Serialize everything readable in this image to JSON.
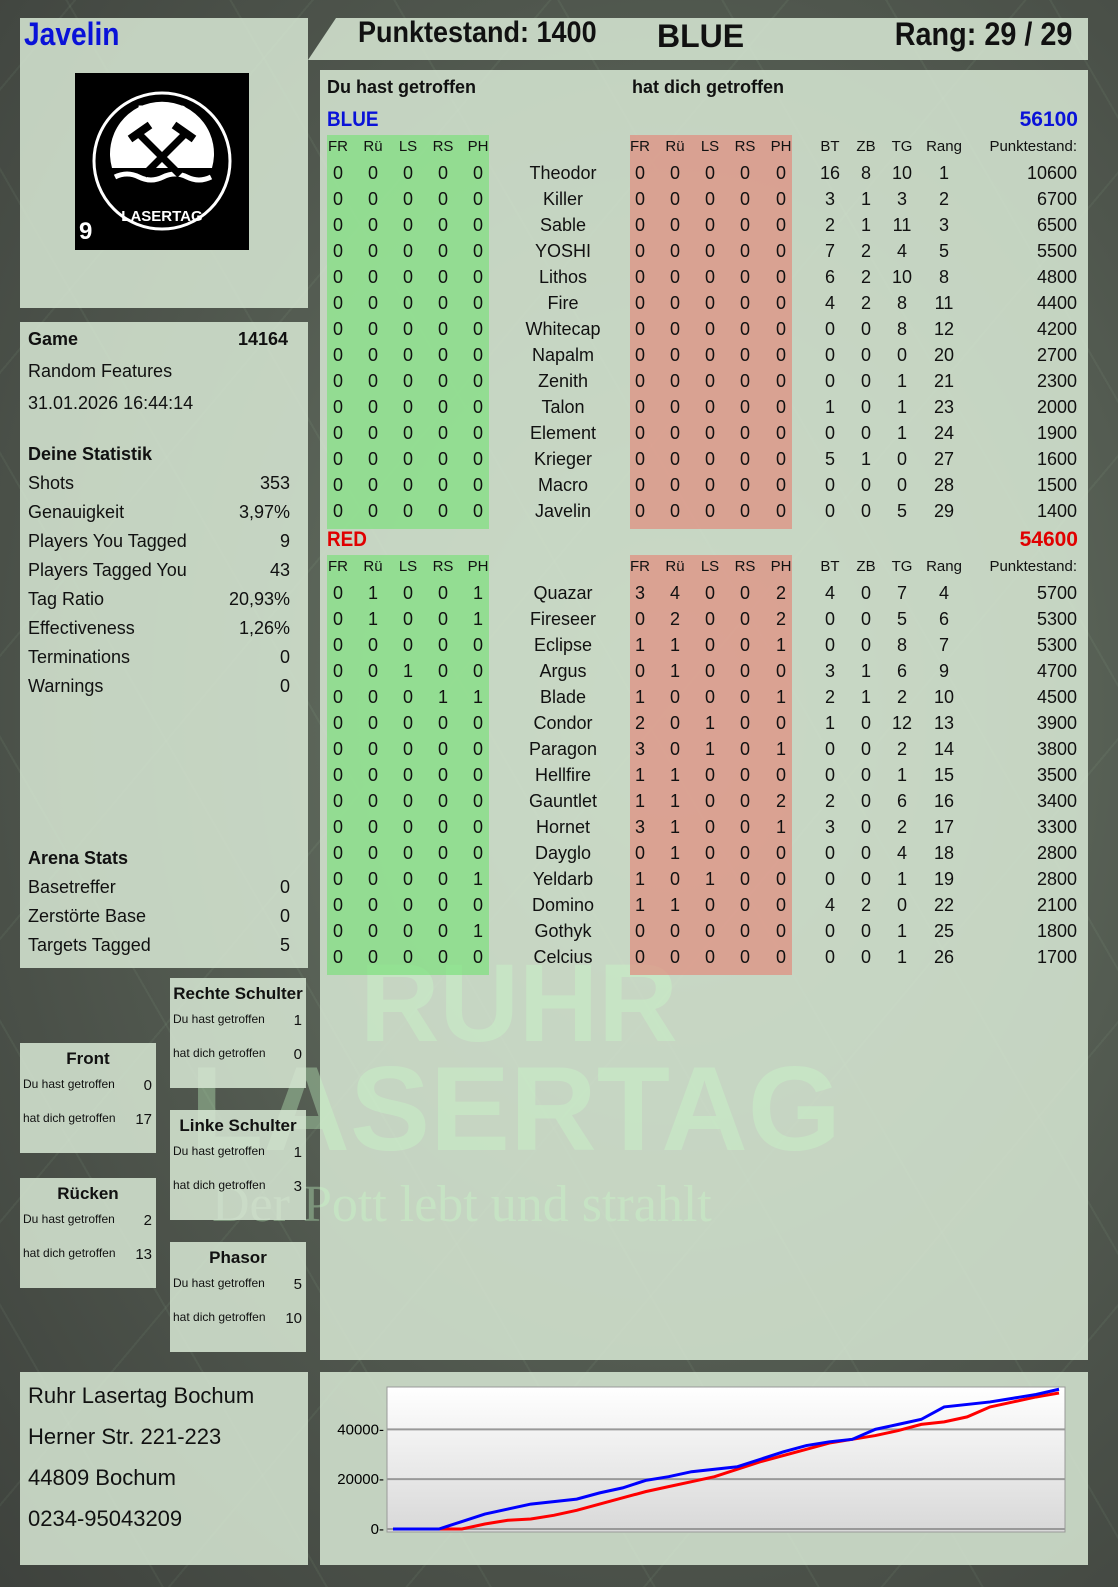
{
  "player": {
    "name": "Javelin",
    "score_label": "Punktestand: 1400",
    "team": "BLUE",
    "rank_label": "Rang: 29 / 29"
  },
  "logo": {
    "top": "RUHR",
    "bottom": "LASERTAG",
    "badge": "9"
  },
  "watermark": {
    "line1": "RUHR",
    "line2": "LASERTAG",
    "line3": "Der Pott lebt und strahlt"
  },
  "columns": {
    "you_hit": "Du hast getroffen",
    "hit_you": "hat dich getroffen",
    "hit_cols": [
      "FR",
      "Rü",
      "LS",
      "RS",
      "PH"
    ],
    "stat_cols": [
      "BT",
      "ZB",
      "TG",
      "Rang"
    ],
    "score_col": "Punktestand:"
  },
  "teams": [
    {
      "name": "BLUE",
      "total": "56100",
      "color": "#0a12d8",
      "rows": [
        [
          "0",
          "0",
          "0",
          "0",
          "0",
          "Theodor",
          "0",
          "0",
          "0",
          "0",
          "0",
          "16",
          "8",
          "10",
          "1",
          "10600"
        ],
        [
          "0",
          "0",
          "0",
          "0",
          "0",
          "Killer",
          "0",
          "0",
          "0",
          "0",
          "0",
          "3",
          "1",
          "3",
          "2",
          "6700"
        ],
        [
          "0",
          "0",
          "0",
          "0",
          "0",
          "Sable",
          "0",
          "0",
          "0",
          "0",
          "0",
          "2",
          "1",
          "11",
          "3",
          "6500"
        ],
        [
          "0",
          "0",
          "0",
          "0",
          "0",
          "YOSHI",
          "0",
          "0",
          "0",
          "0",
          "0",
          "7",
          "2",
          "4",
          "5",
          "5500"
        ],
        [
          "0",
          "0",
          "0",
          "0",
          "0",
          "Lithos",
          "0",
          "0",
          "0",
          "0",
          "0",
          "6",
          "2",
          "10",
          "8",
          "4800"
        ],
        [
          "0",
          "0",
          "0",
          "0",
          "0",
          "Fire",
          "0",
          "0",
          "0",
          "0",
          "0",
          "4",
          "2",
          "8",
          "11",
          "4400"
        ],
        [
          "0",
          "0",
          "0",
          "0",
          "0",
          "Whitecap",
          "0",
          "0",
          "0",
          "0",
          "0",
          "0",
          "0",
          "8",
          "12",
          "4200"
        ],
        [
          "0",
          "0",
          "0",
          "0",
          "0",
          "Napalm",
          "0",
          "0",
          "0",
          "0",
          "0",
          "0",
          "0",
          "0",
          "20",
          "2700"
        ],
        [
          "0",
          "0",
          "0",
          "0",
          "0",
          "Zenith",
          "0",
          "0",
          "0",
          "0",
          "0",
          "0",
          "0",
          "1",
          "21",
          "2300"
        ],
        [
          "0",
          "0",
          "0",
          "0",
          "0",
          "Talon",
          "0",
          "0",
          "0",
          "0",
          "0",
          "1",
          "0",
          "1",
          "23",
          "2000"
        ],
        [
          "0",
          "0",
          "0",
          "0",
          "0",
          "Element",
          "0",
          "0",
          "0",
          "0",
          "0",
          "0",
          "0",
          "1",
          "24",
          "1900"
        ],
        [
          "0",
          "0",
          "0",
          "0",
          "0",
          "Krieger",
          "0",
          "0",
          "0",
          "0",
          "0",
          "5",
          "1",
          "0",
          "27",
          "1600"
        ],
        [
          "0",
          "0",
          "0",
          "0",
          "0",
          "Macro",
          "0",
          "0",
          "0",
          "0",
          "0",
          "0",
          "0",
          "0",
          "28",
          "1500"
        ],
        [
          "0",
          "0",
          "0",
          "0",
          "0",
          "Javelin",
          "0",
          "0",
          "0",
          "0",
          "0",
          "0",
          "0",
          "5",
          "29",
          "1400"
        ]
      ]
    },
    {
      "name": "RED",
      "total": "54600",
      "color": "#e00000",
      "rows": [
        [
          "0",
          "1",
          "0",
          "0",
          "1",
          "Quazar",
          "3",
          "4",
          "0",
          "0",
          "2",
          "4",
          "0",
          "7",
          "4",
          "5700"
        ],
        [
          "0",
          "1",
          "0",
          "0",
          "1",
          "Fireseer",
          "0",
          "2",
          "0",
          "0",
          "2",
          "0",
          "0",
          "5",
          "6",
          "5300"
        ],
        [
          "0",
          "0",
          "0",
          "0",
          "0",
          "Eclipse",
          "1",
          "1",
          "0",
          "0",
          "1",
          "0",
          "0",
          "8",
          "7",
          "5300"
        ],
        [
          "0",
          "0",
          "1",
          "0",
          "0",
          "Argus",
          "0",
          "1",
          "0",
          "0",
          "0",
          "3",
          "1",
          "6",
          "9",
          "4700"
        ],
        [
          "0",
          "0",
          "0",
          "1",
          "1",
          "Blade",
          "1",
          "0",
          "0",
          "0",
          "1",
          "2",
          "1",
          "2",
          "10",
          "4500"
        ],
        [
          "0",
          "0",
          "0",
          "0",
          "0",
          "Condor",
          "2",
          "0",
          "1",
          "0",
          "0",
          "1",
          "0",
          "12",
          "13",
          "3900"
        ],
        [
          "0",
          "0",
          "0",
          "0",
          "0",
          "Paragon",
          "3",
          "0",
          "1",
          "0",
          "1",
          "0",
          "0",
          "2",
          "14",
          "3800"
        ],
        [
          "0",
          "0",
          "0",
          "0",
          "0",
          "Hellfire",
          "1",
          "1",
          "0",
          "0",
          "0",
          "0",
          "0",
          "1",
          "15",
          "3500"
        ],
        [
          "0",
          "0",
          "0",
          "0",
          "0",
          "Gauntlet",
          "1",
          "1",
          "0",
          "0",
          "2",
          "2",
          "0",
          "6",
          "16",
          "3400"
        ],
        [
          "0",
          "0",
          "0",
          "0",
          "0",
          "Hornet",
          "3",
          "1",
          "0",
          "0",
          "1",
          "3",
          "0",
          "2",
          "17",
          "3300"
        ],
        [
          "0",
          "0",
          "0",
          "0",
          "0",
          "Dayglo",
          "0",
          "1",
          "0",
          "0",
          "0",
          "0",
          "0",
          "4",
          "18",
          "2800"
        ],
        [
          "0",
          "0",
          "0",
          "0",
          "1",
          "Yeldarb",
          "1",
          "0",
          "1",
          "0",
          "0",
          "0",
          "0",
          "1",
          "19",
          "2800"
        ],
        [
          "0",
          "0",
          "0",
          "0",
          "0",
          "Domino",
          "1",
          "1",
          "0",
          "0",
          "0",
          "4",
          "2",
          "0",
          "22",
          "2100"
        ],
        [
          "0",
          "0",
          "0",
          "0",
          "1",
          "Gothyk",
          "0",
          "0",
          "0",
          "0",
          "0",
          "0",
          "0",
          "1",
          "25",
          "1800"
        ],
        [
          "0",
          "0",
          "0",
          "0",
          "0",
          "Celcius",
          "0",
          "0",
          "0",
          "0",
          "0",
          "0",
          "0",
          "1",
          "26",
          "1700"
        ]
      ]
    }
  ],
  "game": {
    "label": "Game",
    "id": "14164",
    "mode": "Random Features",
    "datetime": "31.01.2026 16:44:14"
  },
  "stats": {
    "title": "Deine Statistik",
    "rows": [
      [
        "Shots",
        "353"
      ],
      [
        "Genauigkeit",
        "3,97%"
      ],
      [
        "Players You Tagged",
        "9"
      ],
      [
        "Players Tagged You",
        "43"
      ],
      [
        "Tag Ratio",
        "20,93%"
      ],
      [
        "Effectiveness",
        "1,26%"
      ],
      [
        "Terminations",
        "0"
      ],
      [
        "Warnings",
        "0"
      ]
    ]
  },
  "arena": {
    "title": "Arena Stats",
    "rows": [
      [
        "Basetreffer",
        "0"
      ],
      [
        "Zerstörte Base",
        "0"
      ],
      [
        "Targets Tagged",
        "5"
      ]
    ]
  },
  "zones": {
    "you_hit": "Du hast getroffen",
    "hit_you": "hat dich getroffen",
    "items": [
      {
        "name": "Rechte Schulter",
        "you_hit": "1",
        "hit_you": "0"
      },
      {
        "name": "Front",
        "you_hit": "0",
        "hit_you": "17"
      },
      {
        "name": "Linke Schulter",
        "you_hit": "1",
        "hit_you": "3"
      },
      {
        "name": "Rücken",
        "you_hit": "2",
        "hit_you": "13"
      },
      {
        "name": "Phasor",
        "you_hit": "5",
        "hit_you": "10"
      }
    ]
  },
  "address": {
    "lines": [
      "Ruhr Lasertag Bochum",
      "Herner Str. 221-223",
      "44809 Bochum",
      "0234-95043209"
    ]
  },
  "chart_data": {
    "type": "line",
    "ylim": [
      0,
      57000
    ],
    "yticks": [
      "0",
      "20000",
      "40000"
    ],
    "grid": true,
    "legend": "none",
    "series": [
      {
        "color": "#0000ff",
        "values": [
          0,
          0,
          0,
          3000,
          6000,
          8000,
          10000,
          11000,
          12000,
          14500,
          16500,
          19500,
          21000,
          23000,
          24000,
          25000,
          28000,
          31000,
          33500,
          35000,
          36000,
          40000,
          42000,
          44000,
          49000,
          50000,
          51000,
          52500,
          54000,
          56100
        ]
      },
      {
        "color": "#ff0000",
        "values": [
          0,
          0,
          0,
          0,
          2000,
          3500,
          4000,
          5500,
          7500,
          10000,
          12500,
          15000,
          17000,
          19000,
          21000,
          24000,
          27000,
          29500,
          32000,
          34500,
          36000,
          37500,
          39500,
          42000,
          43000,
          45000,
          49000,
          51000,
          53000,
          54600
        ]
      }
    ]
  }
}
